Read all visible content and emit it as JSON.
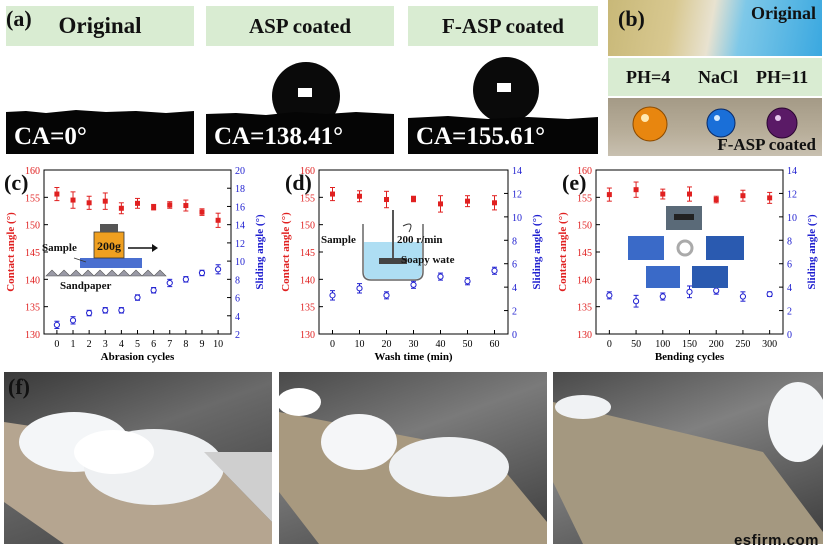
{
  "panel_a": {
    "label": "(a)",
    "headers": [
      "Original",
      "ASP coated",
      "F-ASP coated"
    ],
    "ca_values": [
      "CA=0°",
      "CA=138.41°",
      "CA=155.61°"
    ]
  },
  "panel_b": {
    "label": "(b)",
    "top_text": "Original",
    "drop_labels": [
      "PH=4",
      "NaCl",
      "PH=11"
    ],
    "bottom_text": "F-ASP coated",
    "drop_colors": [
      "#e8860f",
      "#1a6fd8",
      "#5a1a66"
    ]
  },
  "panel_f": {
    "label": "(f)"
  },
  "watermark": "esfirm.com",
  "colors": {
    "contact": "#e02020",
    "sliding": "#2020d0",
    "header_bg": "#d9ecd2"
  },
  "chart_data": [
    {
      "type": "scatter",
      "panel": "(c)",
      "xlabel": "Abrasion cycles",
      "ylabel_left": "Contact angle (°)",
      "ylabel_right": "Sliding angle (°)",
      "x": [
        0,
        1,
        2,
        3,
        4,
        5,
        6,
        7,
        8,
        9,
        10
      ],
      "x_ticks": [
        "0",
        "1",
        "2",
        "3",
        "4",
        "5",
        "6",
        "7",
        "8",
        "9",
        "10"
      ],
      "xlim": [
        -0.8,
        10.8
      ],
      "ylim_left": [
        130,
        160
      ],
      "ylim_right": [
        2,
        20
      ],
      "yticks_left": [
        "130",
        "135",
        "140",
        "145",
        "150",
        "155",
        "160"
      ],
      "yticks_right": [
        "2",
        "4",
        "6",
        "8",
        "10",
        "12",
        "14",
        "16",
        "18",
        "20"
      ],
      "series": [
        {
          "name": "Contact angle",
          "axis": "left",
          "marker": "square",
          "values": [
            155.6,
            154.5,
            154.0,
            154.3,
            153.0,
            153.9,
            153.2,
            153.6,
            153.5,
            152.3,
            150.8
          ],
          "errors": [
            1.2,
            1.5,
            1.2,
            1.5,
            1.0,
            0.9,
            0.5,
            0.6,
            1.0,
            0.6,
            1.3
          ]
        },
        {
          "name": "Sliding angle",
          "axis": "right",
          "marker": "circle",
          "values": [
            3.0,
            3.5,
            4.3,
            4.6,
            4.6,
            6.0,
            6.8,
            7.6,
            8.0,
            8.7,
            9.1
          ],
          "errors": [
            0.4,
            0.4,
            0.3,
            0.3,
            0.3,
            0.3,
            0.3,
            0.4,
            0.3,
            0.3,
            0.5
          ]
        }
      ],
      "annotations": [
        "Sample",
        "200g",
        "Sandpaper"
      ]
    },
    {
      "type": "scatter",
      "panel": "(d)",
      "xlabel": "Wash time (min)",
      "ylabel_left": "Contact angle (°)",
      "ylabel_right": "Sliding angle (°)",
      "x": [
        0,
        10,
        20,
        30,
        40,
        50,
        60
      ],
      "x_ticks": [
        "0",
        "10",
        "20",
        "30",
        "40",
        "50",
        "60"
      ],
      "xlim": [
        -5,
        65
      ],
      "ylim_left": [
        130,
        160
      ],
      "ylim_right": [
        0,
        14
      ],
      "yticks_left": [
        "130",
        "135",
        "140",
        "145",
        "150",
        "155",
        "160"
      ],
      "yticks_right": [
        "0",
        "2",
        "4",
        "6",
        "8",
        "10",
        "12",
        "14"
      ],
      "series": [
        {
          "name": "Contact angle",
          "axis": "left",
          "marker": "square",
          "values": [
            155.6,
            155.2,
            154.6,
            154.7,
            153.8,
            154.3,
            154.0
          ],
          "errors": [
            1.2,
            1.0,
            1.5,
            0.5,
            1.5,
            1.0,
            1.3
          ]
        },
        {
          "name": "Sliding angle",
          "axis": "right",
          "marker": "circle",
          "values": [
            3.3,
            3.9,
            3.3,
            4.2,
            4.9,
            4.5,
            5.4
          ],
          "errors": [
            0.4,
            0.4,
            0.3,
            0.3,
            0.3,
            0.3,
            0.3
          ]
        }
      ],
      "annotations": [
        "Sample",
        "200 r/min",
        "Soapy wate"
      ]
    },
    {
      "type": "scatter",
      "panel": "(e)",
      "xlabel": "Bending cycles",
      "ylabel_left": "Contact angle (°)",
      "ylabel_right": "Sliding angle (°)",
      "x": [
        0,
        50,
        100,
        150,
        200,
        250,
        300
      ],
      "x_ticks": [
        "0",
        "50",
        "100",
        "150",
        "200",
        "250",
        "300"
      ],
      "xlim": [
        -25,
        325
      ],
      "ylim_left": [
        130,
        160
      ],
      "ylim_right": [
        0,
        14
      ],
      "yticks_left": [
        "130",
        "135",
        "140",
        "145",
        "150",
        "155",
        "160"
      ],
      "yticks_right": [
        "0",
        "2",
        "4",
        "6",
        "8",
        "10",
        "12",
        "14"
      ],
      "series": [
        {
          "name": "Contact angle",
          "axis": "left",
          "marker": "square",
          "values": [
            155.5,
            156.4,
            155.6,
            155.6,
            154.6,
            155.3,
            154.9
          ],
          "errors": [
            1.2,
            1.4,
            0.9,
            1.3,
            0.6,
            1.0,
            1.0
          ]
        },
        {
          "name": "Sliding angle",
          "axis": "right",
          "marker": "circle",
          "values": [
            3.3,
            2.8,
            3.2,
            3.6,
            3.7,
            3.2,
            3.4
          ],
          "errors": [
            0.3,
            0.5,
            0.3,
            0.5,
            0.3,
            0.4,
            0.2
          ]
        }
      ],
      "annotations": []
    }
  ]
}
